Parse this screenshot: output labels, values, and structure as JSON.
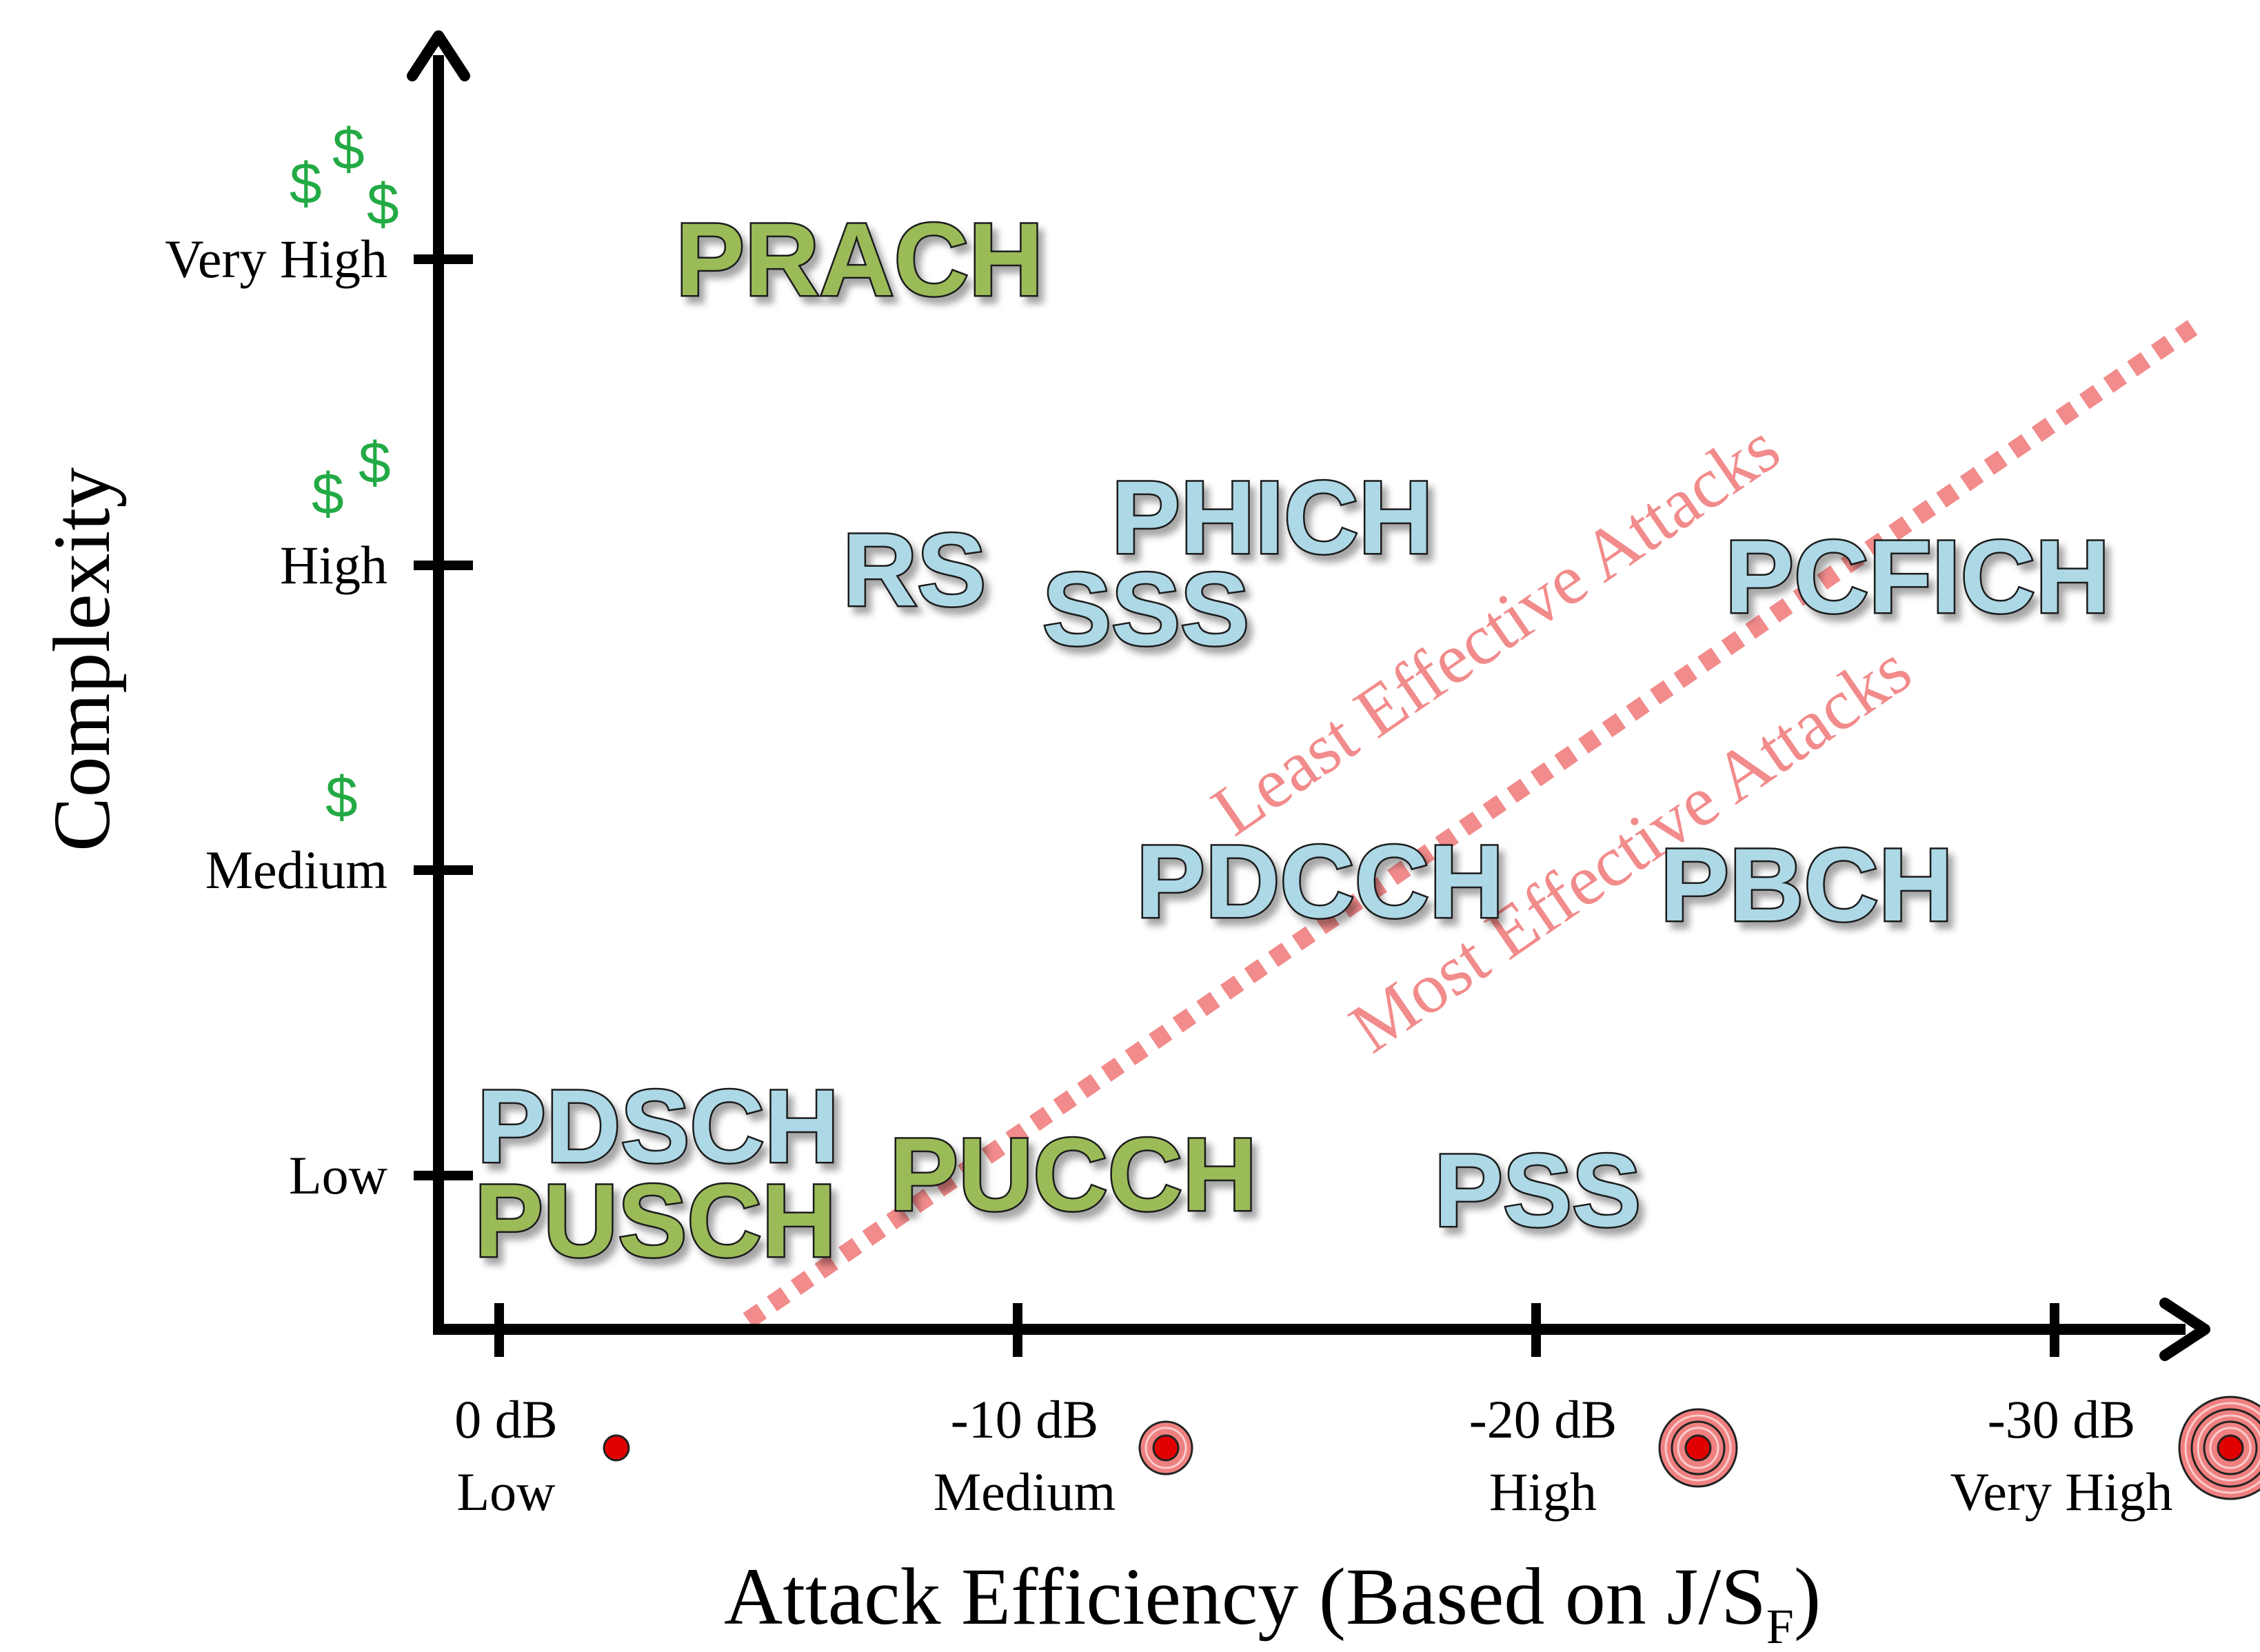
{
  "colors": {
    "axis": "#000000",
    "green_fill": "#9bbb59",
    "blue_fill": "#add8e6",
    "outline": "#1a1a1a",
    "divider": "#f28b8b",
    "zone_text": "#f28b8b",
    "money": "#22aa44",
    "target_red": "#e00000",
    "target_ring": "#f08080"
  },
  "axes": {
    "y_title": "Complexity",
    "x_title_main": "Attack Efficiency (Based on J/S",
    "x_title_sub": "F",
    "x_title_close": ")"
  },
  "y_ticks": [
    {
      "id": "very-high",
      "label": "Very High",
      "cost": "$$$",
      "level": 4
    },
    {
      "id": "high",
      "label": "High",
      "cost": "$$",
      "level": 3
    },
    {
      "id": "medium",
      "label": "Medium",
      "cost": "$",
      "level": 2
    },
    {
      "id": "low",
      "label": "Low",
      "cost": "",
      "level": 1
    }
  ],
  "x_ticks": [
    {
      "id": "0db",
      "db": "0 dB",
      "label": "Low",
      "value": 0,
      "target_rings": 0
    },
    {
      "id": "10db",
      "db": "-10 dB",
      "label": "Medium",
      "value": -10,
      "target_rings": 1
    },
    {
      "id": "20db",
      "db": "-20 dB",
      "label": "High",
      "value": -20,
      "target_rings": 2
    },
    {
      "id": "30db",
      "db": "-30 dB",
      "label": "Very High",
      "value": -30,
      "target_rings": 3
    }
  ],
  "zones": {
    "least": "Least Effective Attacks",
    "most": "Most Effective Attacks"
  },
  "channels": [
    {
      "id": "prach",
      "label": "PRACH",
      "color": "green"
    },
    {
      "id": "rs",
      "label": "RS",
      "color": "blue"
    },
    {
      "id": "phich",
      "label": "PHICH",
      "color": "blue"
    },
    {
      "id": "sss",
      "label": "SSS",
      "color": "blue"
    },
    {
      "id": "pcfich",
      "label": "PCFICH",
      "color": "blue"
    },
    {
      "id": "pdcch",
      "label": "PDCCH",
      "color": "blue"
    },
    {
      "id": "pbch",
      "label": "PBCH",
      "color": "blue"
    },
    {
      "id": "pdsch",
      "label": "PDSCH",
      "color": "blue"
    },
    {
      "id": "pusch",
      "label": "PUSCH",
      "color": "green"
    },
    {
      "id": "pucch",
      "label": "PUCCH",
      "color": "green"
    },
    {
      "id": "pss",
      "label": "PSS",
      "color": "blue"
    }
  ]
}
